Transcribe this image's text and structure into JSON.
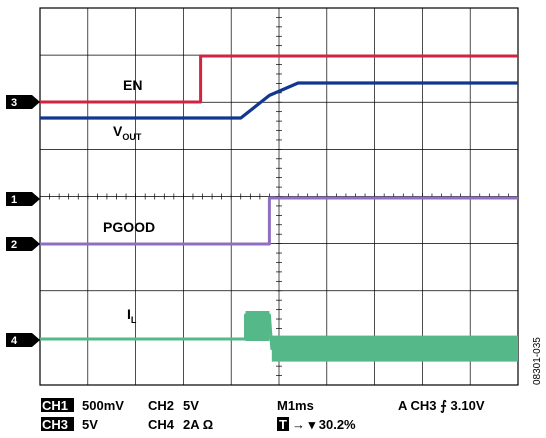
{
  "chart_data": {
    "type": "line",
    "x_unit": "ms",
    "x_per_div": 1,
    "xlim": [
      -4.8,
      5.2
    ],
    "grid": true,
    "series": [
      {
        "name": "EN",
        "channel": 3,
        "color": "#d2233f",
        "points": [
          [
            -4.8,
            0
          ],
          [
            -1.44,
            0
          ],
          [
            -1.44,
            5
          ],
          [
            5.2,
            5
          ]
        ]
      },
      {
        "name": "V",
        "name_sub": "OUT",
        "channel": 1,
        "color": "#12378f",
        "points": [
          [
            -4.8,
            0
          ],
          [
            -0.6,
            0
          ],
          [
            0.0,
            1.0
          ],
          [
            0.6,
            1.55
          ],
          [
            5.2,
            1.55
          ]
        ]
      },
      {
        "name": "PGOOD",
        "channel": 2,
        "color": "#8f70c0",
        "points": [
          [
            -4.8,
            0
          ],
          [
            0.0,
            0
          ],
          [
            0.0,
            5
          ],
          [
            5.2,
            5
          ]
        ]
      },
      {
        "name": "I",
        "name_sub": "L",
        "channel": 4,
        "color": "#54b888",
        "points": [
          [
            -4.8,
            0
          ],
          [
            -0.5,
            0
          ],
          [
            -0.5,
            0.75
          ],
          [
            0.0,
            0.75
          ],
          [
            0.05,
            -0.3
          ],
          [
            5.2,
            -0.3
          ]
        ]
      }
    ]
  },
  "markers": [
    "3",
    "1",
    "2",
    "4"
  ],
  "status": {
    "ch1_tag": "CH1",
    "ch1_scale": "500mV",
    "ch2": "CH2",
    "ch2_scale": "5V",
    "ch3_tag": "CH3",
    "ch3_scale": "5V",
    "ch4": "CH4",
    "ch4_scale": "2A Ω",
    "timebase": "M1ms",
    "trigger": "A CH3 ⨍ 3.10V",
    "trigger_pos_tag": "T",
    "trigger_pos": "→ ▾ 30.2%"
  },
  "figure_id": "08301-035"
}
